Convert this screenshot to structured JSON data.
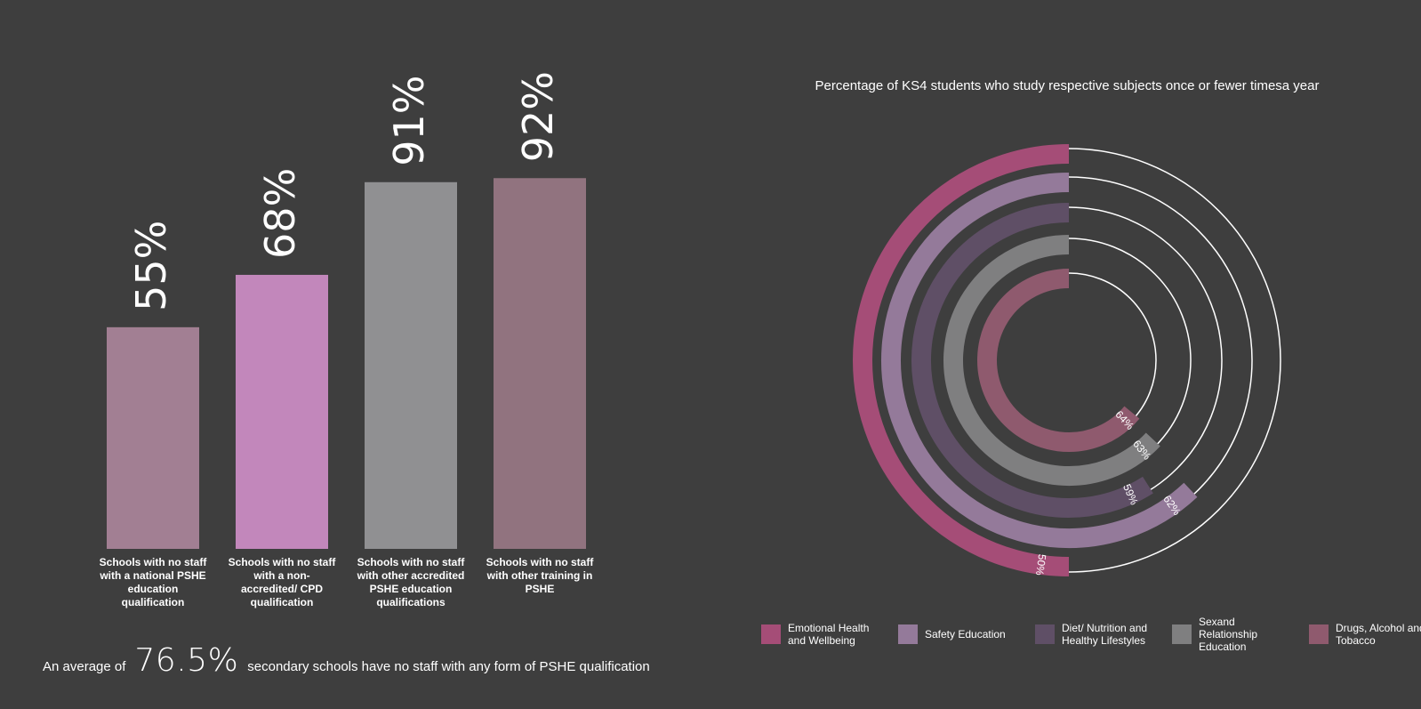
{
  "chart_data": [
    {
      "type": "bar",
      "categories": [
        "Schools with no staff with a national PSHE education qualification",
        "Schools with no staff with a non-accredited/ CPD qualification",
        "Schools with no staff with other accredited PSHE education qualifications",
        "Schools with no staff with other training in PSHE"
      ],
      "values": [
        55,
        68,
        91,
        92
      ],
      "value_labels": [
        "55%",
        "68%",
        "91%",
        "92%"
      ],
      "colors": [
        "#a27f93",
        "#c287bb",
        "#909092",
        "#91737f"
      ],
      "ylim": [
        0,
        100
      ]
    },
    {
      "type": "radial_bar",
      "title": "Percentage of KS4 students who study respective subjects once or fewer timesa year",
      "series": [
        {
          "name": "Emotional Health and Wellbeing",
          "value": 50,
          "label": "50%",
          "color": "#a54d77"
        },
        {
          "name": "Safety Education",
          "value": 62,
          "label": "62%",
          "color": "#947a9a"
        },
        {
          "name": "Diet/ Nutrition and Healthy Lifestyles",
          "value": 59,
          "label": "59%",
          "color": "#5f4f66"
        },
        {
          "name": "Sexand Relationship Education",
          "value": 63,
          "label": "63%",
          "color": "#7f7f80"
        },
        {
          "name": "Drugs, Alcohol and Tobacco",
          "value": 64,
          "label": "64%",
          "color": "#8f5a6e"
        }
      ],
      "legend_position": "bottom"
    }
  ],
  "summary": {
    "prefix": "An average of",
    "value": "76.5%",
    "suffix": "secondary schools have no staff with any form of PSHE qualification"
  }
}
